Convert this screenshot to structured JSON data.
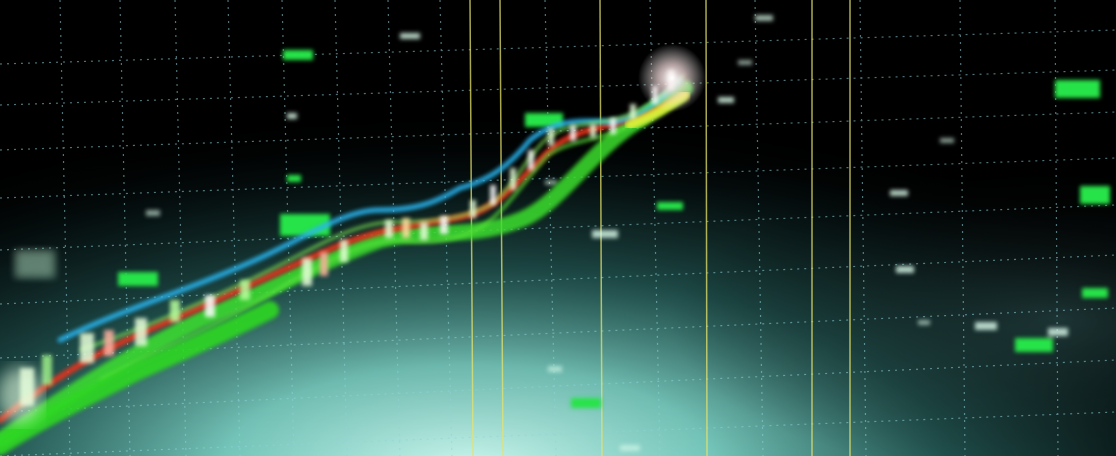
{
  "scene": {
    "description_type": "financial chart photo",
    "colors": {
      "background_dark": "#000000",
      "glow_teal": "#9fe3d6",
      "grid": "#8fd4dc",
      "yellow_lines": "#e6e36b",
      "cyan_line": "#29b6f0",
      "red_line": "#e8301f",
      "green_line": "#3ee02d",
      "yellow_band": "#e3f23a",
      "tag_green": "#27e34a"
    }
  }
}
